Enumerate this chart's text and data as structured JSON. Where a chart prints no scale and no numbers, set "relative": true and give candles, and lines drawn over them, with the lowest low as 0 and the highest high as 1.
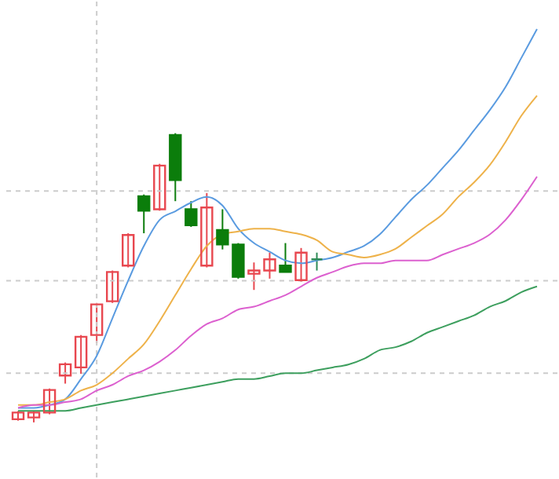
{
  "chart_data": {
    "type": "candlestick",
    "relative": true,
    "ref_lines": [
      {
        "axis": "y",
        "value": 0.8,
        "color": "#cccccc",
        "line_style": "dashed"
      },
      {
        "axis": "y",
        "value": 0.49,
        "color": "#cccccc",
        "line_style": "dashed"
      },
      {
        "axis": "y",
        "value": 0.17,
        "color": "#cccccc",
        "line_style": "dashed"
      }
    ],
    "tick_labels": false,
    "categories": [
      null,
      null,
      null,
      null,
      null,
      null,
      null,
      null,
      null,
      null,
      null,
      null,
      null,
      null,
      null,
      null,
      null,
      null,
      null,
      null,
      null,
      null,
      null,
      null,
      null,
      null,
      null,
      null,
      null,
      null,
      null,
      null,
      null,
      null
    ],
    "ohlc": [
      [
        0.011,
        0.039,
        0.006,
        0.034
      ],
      [
        0.017,
        0.039,
        0,
        0.034
      ],
      [
        0.034,
        0.117,
        0.028,
        0.112
      ],
      [
        0.162,
        0.207,
        0.134,
        0.201
      ],
      [
        0.19,
        0.302,
        0.168,
        0.296
      ],
      [
        0.302,
        0.413,
        0.274,
        0.408
      ],
      [
        0.419,
        0.525,
        0.413,
        0.52
      ],
      [
        0.542,
        0.654,
        0.536,
        0.648
      ],
      [
        0.782,
        0.788,
        0.654,
        0.732
      ],
      [
        0.737,
        0.894,
        0.732,
        0.888
      ],
      [
        0.994,
        1,
        0.765,
        0.838
      ],
      [
        0.737,
        0.765,
        0.676,
        0.682
      ],
      [
        0.542,
        0.793,
        0.536,
        0.743
      ],
      [
        0.665,
        0.737,
        0.598,
        0.615
      ],
      [
        0.615,
        0.62,
        0.497,
        0.503
      ],
      [
        0.514,
        0.553,
        0.458,
        0.525
      ],
      [
        0.525,
        0.587,
        0.497,
        0.564
      ],
      [
        0.542,
        0.62,
        0.52,
        0.52
      ],
      [
        0.492,
        0.603,
        0.486,
        0.587
      ],
      [
        0.564,
        0.587,
        0.525,
        0.564
      ],
      null,
      null,
      null,
      null,
      null,
      null,
      null,
      null,
      null,
      null,
      null,
      null,
      null,
      null
    ],
    "colors": [
      "#e8474f",
      "#e8474f",
      "#e8474f",
      "#e8474f",
      "#e8474f",
      "#e8474f",
      "#e8474f",
      "#e8474f",
      "#0b7d0b",
      "#e8474f",
      "#0b7d0b",
      "#0b7d0b",
      "#e8474f",
      "#0b7d0b",
      "#0b7d0b",
      "#e8474f",
      "#e8474f",
      "#0b7d0b",
      "#e8474f",
      "#2e8b57",
      null,
      null,
      null,
      null,
      null,
      null,
      null,
      null,
      null,
      null,
      null,
      null,
      null,
      null
    ],
    "series": [
      {
        "type": "line",
        "color": "#5a9be0",
        "values": [
          0.05,
          0.05,
          0.06,
          0.08,
          0.15,
          0.23,
          0.36,
          0.49,
          0.61,
          0.7,
          0.73,
          0.76,
          0.78,
          0.75,
          0.67,
          0.62,
          0.59,
          0.56,
          0.55,
          0.56,
          0.57,
          0.59,
          0.61,
          0.65,
          0.71,
          0.77,
          0.82,
          0.88,
          0.94,
          1.01,
          1.08,
          1.16,
          1.26,
          1.36
        ]
      },
      {
        "type": "line",
        "color": "#eeb24a",
        "values": [
          0.06,
          0.06,
          0.07,
          0.08,
          0.11,
          0.13,
          0.17,
          0.22,
          0.27,
          0.35,
          0.44,
          0.53,
          0.61,
          0.65,
          0.66,
          0.67,
          0.67,
          0.66,
          0.65,
          0.63,
          0.59,
          0.58,
          0.57,
          0.58,
          0.6,
          0.64,
          0.68,
          0.72,
          0.78,
          0.83,
          0.89,
          0.97,
          1.06,
          1.13
        ]
      },
      {
        "type": "line",
        "color": "#dc60cf",
        "values": [
          0.05,
          0.06,
          0.06,
          0.07,
          0.08,
          0.11,
          0.13,
          0.16,
          0.18,
          0.21,
          0.25,
          0.3,
          0.34,
          0.36,
          0.39,
          0.4,
          0.42,
          0.44,
          0.47,
          0.5,
          0.52,
          0.54,
          0.55,
          0.55,
          0.56,
          0.56,
          0.56,
          0.58,
          0.6,
          0.62,
          0.65,
          0.7,
          0.77,
          0.85
        ]
      },
      {
        "type": "line",
        "color": "#3d9f5e",
        "values": [
          0.04,
          0.04,
          0.04,
          0.04,
          0.05,
          0.06,
          0.07,
          0.08,
          0.09,
          0.1,
          0.11,
          0.12,
          0.13,
          0.14,
          0.15,
          0.15,
          0.16,
          0.17,
          0.17,
          0.18,
          0.19,
          0.2,
          0.22,
          0.25,
          0.26,
          0.28,
          0.31,
          0.33,
          0.35,
          0.37,
          0.4,
          0.42,
          0.45,
          0.47
        ]
      }
    ]
  }
}
